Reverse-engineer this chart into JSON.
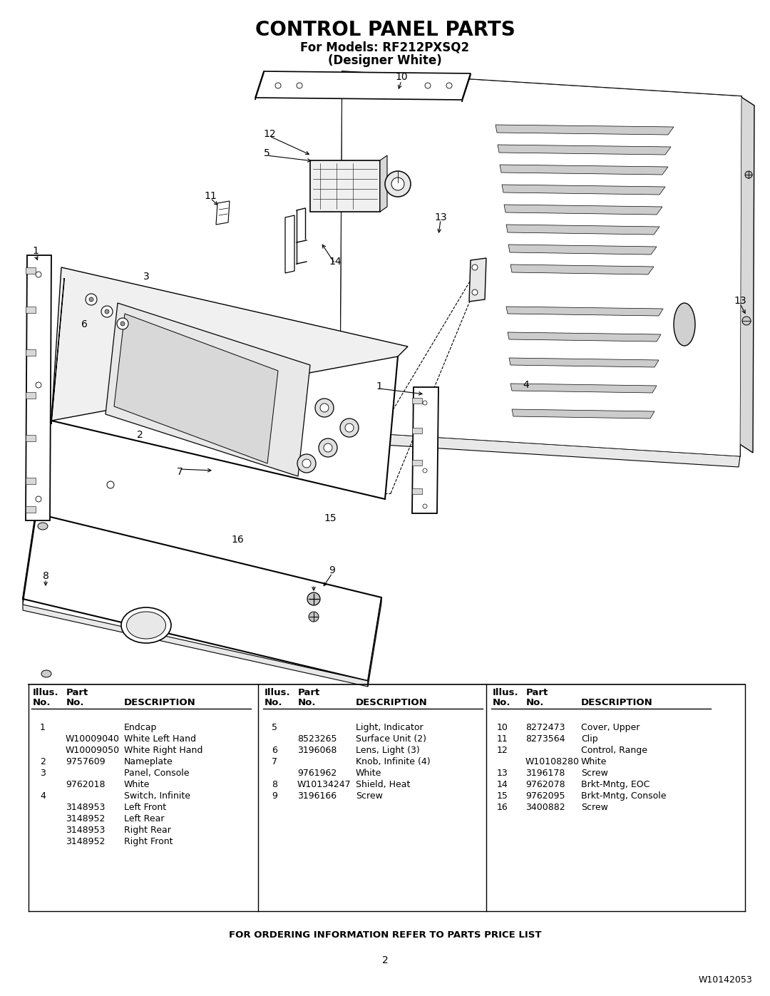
{
  "title": "CONTROL PANEL PARTS",
  "subtitle1": "For Models: RF212PXSQ2",
  "subtitle2": "(Designer White)",
  "footer_note": "FOR ORDERING INFORMATION REFER TO PARTS PRICE LIST",
  "page_num": "2",
  "doc_num": "W10142053",
  "bg_color": "#ffffff",
  "text_color": "#000000",
  "parts_col1": [
    [
      "1",
      "",
      "Endcap"
    ],
    [
      "",
      "W10009040",
      "White Left Hand"
    ],
    [
      "",
      "W10009050",
      "White Right Hand"
    ],
    [
      "2",
      "9757609",
      "Nameplate"
    ],
    [
      "3",
      "",
      "Panel, Console"
    ],
    [
      "",
      "9762018",
      "White"
    ],
    [
      "4",
      "",
      "Switch, Infinite"
    ],
    [
      "",
      "3148953",
      "Left Front"
    ],
    [
      "",
      "3148952",
      "Left Rear"
    ],
    [
      "",
      "3148953",
      "Right Rear"
    ],
    [
      "",
      "3148952",
      "Right Front"
    ]
  ],
  "parts_col2": [
    [
      "5",
      "",
      "Light, Indicator"
    ],
    [
      "",
      "8523265",
      "Surface Unit (2)"
    ],
    [
      "6",
      "3196068",
      "Lens, Light (3)"
    ],
    [
      "7",
      "",
      "Knob, Infinite (4)"
    ],
    [
      "",
      "9761962",
      "White"
    ],
    [
      "8",
      "W10134247",
      "Shield, Heat"
    ],
    [
      "9",
      "3196166",
      "Screw"
    ]
  ],
  "parts_col3": [
    [
      "10",
      "8272473",
      "Cover, Upper"
    ],
    [
      "11",
      "8273564",
      "Clip"
    ],
    [
      "12",
      "",
      "Control, Range"
    ],
    [
      "",
      "W10108280",
      "White"
    ],
    [
      "13",
      "3196178",
      "Screw"
    ],
    [
      "14",
      "9762078",
      "Brkt-Mntg, EOC"
    ],
    [
      "15",
      "9762095",
      "Brkt-Mntg, Console"
    ],
    [
      "16",
      "3400882",
      "Screw"
    ]
  ]
}
